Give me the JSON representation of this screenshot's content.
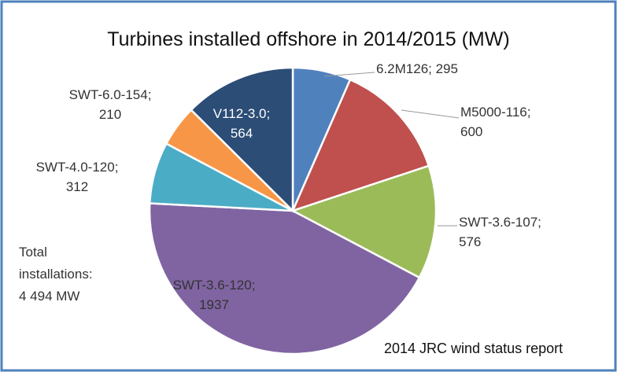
{
  "chart_data": {
    "type": "pie",
    "title": "Turbines installed offshore in 2014/2015 (MW)",
    "categories": [
      "6.2M126",
      "M5000-116",
      "SWT-3.6-107",
      "SWT-3.6-120",
      "SWT-4.0-120",
      "SWT-6.0-154",
      "V112-3.0"
    ],
    "values": [
      295,
      600,
      576,
      1937,
      312,
      210,
      564
    ],
    "value_labels": [
      "6.2M126; 295",
      "M5000-116; 600",
      "SWT-3.6-107; 576",
      "SWT-3.6-120; 1937",
      "SWT-4.0-120; 312",
      "SWT-6.0-154; 210",
      "V112-3.0; 564"
    ],
    "colors": [
      "#4f81bd",
      "#c0504d",
      "#9bbb59",
      "#8064a2",
      "#4bacc6",
      "#f79646",
      "#2c4d75"
    ],
    "annotations": [
      "Total installations: 4 494 MW",
      "2014 JRC wind status report"
    ]
  }
}
